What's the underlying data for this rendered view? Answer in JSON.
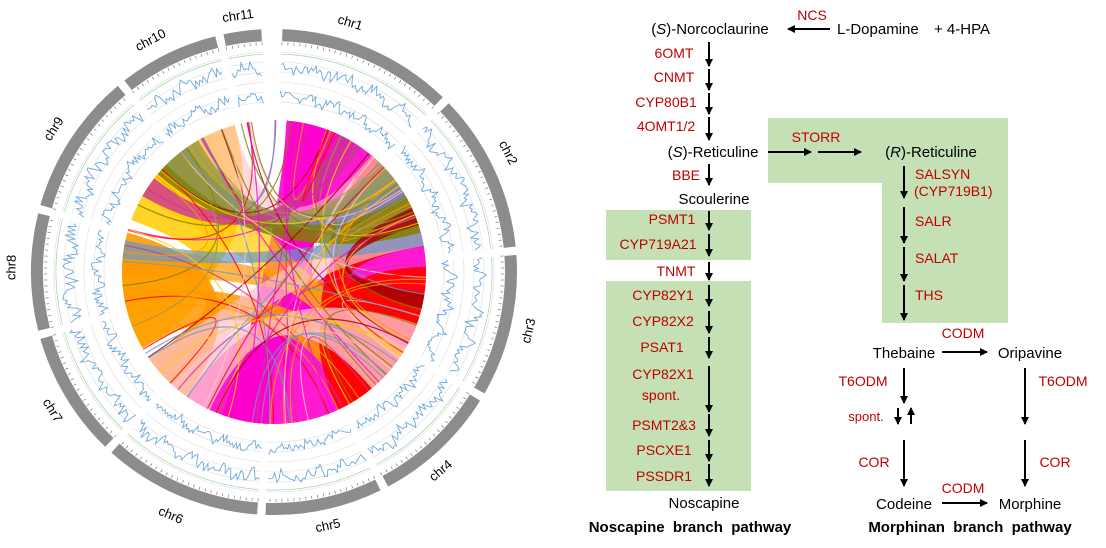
{
  "circos": {
    "chromosomes": [
      {
        "id": "chr1",
        "label": "chr1"
      },
      {
        "id": "chr2",
        "label": "chr2"
      },
      {
        "id": "chr3",
        "label": "chr3"
      },
      {
        "id": "chr4",
        "label": "chr4"
      },
      {
        "id": "chr5",
        "label": "chr5"
      },
      {
        "id": "chr6",
        "label": "chr6"
      },
      {
        "id": "chr7",
        "label": "chr7"
      },
      {
        "id": "chr8",
        "label": "chr8"
      },
      {
        "id": "chr9",
        "label": "chr9"
      },
      {
        "id": "chr10",
        "label": "chr10"
      },
      {
        "id": "chr11",
        "label": "chr11"
      }
    ],
    "link_colors": [
      "#ff00cc",
      "#ffcc00",
      "#ff9900",
      "#ff0000",
      "#ffc0cb",
      "#6699cc",
      "#808000",
      "#99994d",
      "#cc3399",
      "#a00000"
    ],
    "track_color": "#6fa8dc",
    "ideogram_color": "#8c8c8c"
  },
  "pathway": {
    "compounds": {
      "norcoclaurine_prefix": "(",
      "norcoclaurine_s": "S",
      "norcoclaurine_rest": ")-Norcoclaurine",
      "dopamine": "L-Dopamine",
      "hpa": "+ 4-HPA",
      "s_reticuline_prefix": "(",
      "s_reticuline_s": "S",
      "s_reticuline_rest": ")-Reticuline",
      "r_reticuline_prefix": "(",
      "r_reticuline_r": "R",
      "r_reticuline_rest": ")-Reticuline",
      "scoulerine": "Scoulerine",
      "noscapine": "Noscapine",
      "thebaine": "Thebaine",
      "oripavine": "Oripavine",
      "codeine": "Codeine",
      "morphine": "Morphine"
    },
    "enzymes": {
      "ncs": "NCS",
      "omt6": "6OMT",
      "cnmt": "CNMT",
      "cyp80b1": "CYP80B1",
      "omt4": "4OMT1/2",
      "storr": "STORR",
      "bbe": "BBE",
      "salsyn": "SALSYN",
      "salsyn_alt": "(CYP719B1)",
      "salr": "SALR",
      "salat": "SALAT",
      "ths": "THS",
      "psmt1": "PSMT1",
      "cyp719a21": "CYP719A21",
      "tnmt": "TNMT",
      "cyp82y1": "CYP82Y1",
      "cyp82x2": "CYP82X2",
      "psat1": "PSAT1",
      "cyp82x1": "CYP82X1",
      "spont_noscapine": "spont.",
      "psmt23": "PSMT2&3",
      "pscxe1": "PSCXE1",
      "pssdr1": "PSSDR1",
      "codm_top": "CODM",
      "t6odm_left": "T6ODM",
      "t6odm_right": "T6ODM",
      "spont_morphinan": "spont.",
      "cor_left": "COR",
      "cor_right": "COR",
      "codm_bottom": "CODM"
    },
    "titles": {
      "noscapine_branch": "Noscapine  branch  pathway",
      "morphinan_branch": "Morphinan  branch  pathway"
    },
    "colors": {
      "enzyme": "#c00000",
      "box": "#c5e0b4",
      "text": "#000000"
    }
  }
}
